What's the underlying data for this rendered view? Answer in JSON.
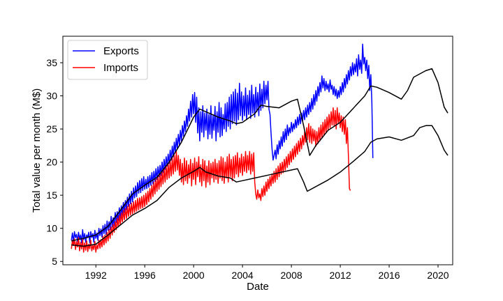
{
  "chart_data": {
    "type": "line",
    "xlabel": "Date",
    "ylabel": "Total value per month (M$)",
    "xlim": [
      1989.3,
      2021.2
    ],
    "ylim": [
      4.5,
      39.0
    ],
    "grid": false,
    "legend_position": "top-left",
    "x_ticks": [
      {
        "value": 1992,
        "label": "1992"
      },
      {
        "value": 1996,
        "label": "1996"
      },
      {
        "value": 2000,
        "label": "2000"
      },
      {
        "value": 2004,
        "label": "2004"
      },
      {
        "value": 2008,
        "label": "2008"
      },
      {
        "value": 2012,
        "label": "2012"
      },
      {
        "value": 2016,
        "label": "2016"
      },
      {
        "value": 2020,
        "label": "2020"
      }
    ],
    "y_ticks": [
      {
        "value": 5,
        "label": "5"
      },
      {
        "value": 10,
        "label": "10"
      },
      {
        "value": 15,
        "label": "15"
      },
      {
        "value": 20,
        "label": "20"
      },
      {
        "value": 25,
        "label": "25"
      },
      {
        "value": 30,
        "label": "30"
      },
      {
        "value": 35,
        "label": "35"
      }
    ],
    "series": [
      {
        "name": "Exports",
        "color": "#0000ff",
        "monthly": true,
        "start": 1990.0,
        "values": [
          8.2,
          9.3,
          7.9,
          9.5,
          8.6,
          9.1,
          8.0,
          9.4,
          8.4,
          9.0,
          7.8,
          9.8,
          8.3,
          9.2,
          7.9,
          9.0,
          8.6,
          9.4,
          7.8,
          9.5,
          8.6,
          9.2,
          7.9,
          9.7,
          8.5,
          9.3,
          8.2,
          10.0,
          8.9,
          9.9,
          8.7,
          10.4,
          9.2,
          10.6,
          9.1,
          11.1,
          9.7,
          11.0,
          9.8,
          11.8,
          10.2,
          11.6,
          10.4,
          12.4,
          10.9,
          12.5,
          11.2,
          13.1,
          11.5,
          13.4,
          12.0,
          13.9,
          12.4,
          14.2,
          12.8,
          14.7,
          13.3,
          15.2,
          13.7,
          15.6,
          14.0,
          16.1,
          14.6,
          16.4,
          14.8,
          16.9,
          15.3,
          17.2,
          15.4,
          17.5,
          15.7,
          17.8,
          15.9,
          17.4,
          16.0,
          17.8,
          16.2,
          18.0,
          16.5,
          18.4,
          16.7,
          18.6,
          17.1,
          19.0,
          17.4,
          19.3,
          17.8,
          19.5,
          18.0,
          20.0,
          18.4,
          20.4,
          18.9,
          20.8,
          19.4,
          21.2,
          19.8,
          21.8,
          20.3,
          22.4,
          20.8,
          23.0,
          21.5,
          23.6,
          22.0,
          24.2,
          22.6,
          24.8,
          23.2,
          25.5,
          23.9,
          26.2,
          24.6,
          27.0,
          25.4,
          28.0,
          26.2,
          29.2,
          26.8,
          30.2,
          27.3,
          30.5,
          26.0,
          29.8,
          24.4,
          28.2,
          23.2,
          27.6,
          24.5,
          28.5,
          23.8,
          27.4,
          24.8,
          28.0,
          23.5,
          27.2,
          24.2,
          28.5,
          23.6,
          27.0,
          24.8,
          28.4,
          23.2,
          27.6,
          24.5,
          29.0,
          23.8,
          28.2,
          24.0,
          27.2,
          25.0,
          28.8,
          24.6,
          29.0,
          25.4,
          29.8,
          25.0,
          30.2,
          25.8,
          30.6,
          26.2,
          31.0,
          25.6,
          30.4,
          26.4,
          31.9,
          27.0,
          30.6,
          26.3,
          30.0,
          27.0,
          31.2,
          26.4,
          30.1,
          27.2,
          30.8,
          26.6,
          31.6,
          27.4,
          30.2,
          26.8,
          31.3,
          27.6,
          30.5,
          27.0,
          31.8,
          27.8,
          31.0,
          28.2,
          32.2,
          28.8,
          31.6,
          29.4,
          32.2,
          28.0,
          27.2,
          24.5,
          22.0,
          20.3,
          21.0,
          21.8,
          20.5,
          22.6,
          21.2,
          23.2,
          22.0,
          23.8,
          22.4,
          24.6,
          23.0,
          25.0,
          23.4,
          25.6,
          24.0,
          25.2,
          24.4,
          26.0,
          24.6,
          25.8,
          25.0,
          26.4,
          25.2,
          26.8,
          25.6,
          27.2,
          25.8,
          27.4,
          26.2,
          27.8,
          26.4,
          28.2,
          26.8,
          28.6,
          27.2,
          29.0,
          27.6,
          29.6,
          28.0,
          30.2,
          28.6,
          30.8,
          29.2,
          31.4,
          30.0,
          32.0,
          30.6,
          33.0,
          31.2,
          32.6,
          30.8,
          32.2,
          31.0,
          31.8,
          30.6,
          32.4,
          31.0,
          31.6,
          30.2,
          31.4,
          30.0,
          31.0,
          29.6,
          30.8,
          29.8,
          31.4,
          30.2,
          32.0,
          30.6,
          32.6,
          31.2,
          33.2,
          31.8,
          33.8,
          32.4,
          34.4,
          33.0,
          35.0,
          33.2,
          34.8,
          33.6,
          35.6,
          33.0,
          36.2,
          34.0,
          35.4,
          33.4,
          37.8,
          34.8,
          35.8,
          33.8,
          35.4,
          32.6,
          34.6,
          30.8,
          33.2,
          29.0,
          20.6
        ]
      },
      {
        "name": "Imports",
        "color": "#ff0000",
        "monthly": true,
        "start": 1990.0,
        "values": [
          6.9,
          8.2,
          7.4,
          8.4,
          6.8,
          8.0,
          7.2,
          8.6,
          6.6,
          7.9,
          6.9,
          8.3,
          6.4,
          7.8,
          6.7,
          8.1,
          6.5,
          7.6,
          6.9,
          8.2,
          6.6,
          7.4,
          6.8,
          8.0,
          6.4,
          7.5,
          6.9,
          8.2,
          7.0,
          8.3,
          7.2,
          8.8,
          7.5,
          9.0,
          7.8,
          9.4,
          8.1,
          9.8,
          8.5,
          10.2,
          9.0,
          10.6,
          9.4,
          11.0,
          9.8,
          11.5,
          10.2,
          11.9,
          10.6,
          12.3,
          11.0,
          12.7,
          11.3,
          13.0,
          11.5,
          13.3,
          11.8,
          13.6,
          12.0,
          13.8,
          12.2,
          14.0,
          12.4,
          14.2,
          12.6,
          14.5,
          12.8,
          14.6,
          13.0,
          14.8,
          13.1,
          15.0,
          13.3,
          15.3,
          13.6,
          15.6,
          14.0,
          16.0,
          14.4,
          16.5,
          14.8,
          17.0,
          15.2,
          17.4,
          15.6,
          17.8,
          15.9,
          18.2,
          16.3,
          18.6,
          16.7,
          19.0,
          17.0,
          19.4,
          17.4,
          19.8,
          17.6,
          20.2,
          17.9,
          20.6,
          18.2,
          21.0,
          18.6,
          21.6,
          18.8,
          21.0,
          18.0,
          20.4,
          17.0,
          19.8,
          16.6,
          20.6,
          17.2,
          20.2,
          16.8,
          19.6,
          17.6,
          20.4,
          16.4,
          19.8,
          17.4,
          20.6,
          16.6,
          20.0,
          17.8,
          20.8,
          17.0,
          19.6,
          16.4,
          20.4,
          17.2,
          20.2,
          16.2,
          19.4,
          17.0,
          20.2,
          16.6,
          19.8,
          17.6,
          20.0,
          17.0,
          20.4,
          17.4,
          19.8,
          16.8,
          20.2,
          17.6,
          20.8,
          17.2,
          20.6,
          16.8,
          20.0,
          17.6,
          20.8,
          17.0,
          21.2,
          17.8,
          20.4,
          17.2,
          20.8,
          17.6,
          21.0,
          18.2,
          21.4,
          17.8,
          20.6,
          18.4,
          21.2,
          18.0,
          20.8,
          18.6,
          21.6,
          18.4,
          21.0,
          18.8,
          21.6,
          18.2,
          21.2,
          18.6,
          21.4,
          17.0,
          15.2,
          14.4,
          15.8,
          14.6,
          15.2,
          14.2,
          16.0,
          14.8,
          16.4,
          15.0,
          17.0,
          15.6,
          17.4,
          16.0,
          17.8,
          16.4,
          18.2,
          16.8,
          18.6,
          17.0,
          19.0,
          17.4,
          19.4,
          17.8,
          19.8,
          18.2,
          20.0,
          18.4,
          20.4,
          18.8,
          20.8,
          19.2,
          21.2,
          19.6,
          21.6,
          20.0,
          22.0,
          20.4,
          22.4,
          20.8,
          22.8,
          21.2,
          23.2,
          21.6,
          23.6,
          22.0,
          24.0,
          22.6,
          24.6,
          23.0,
          25.2,
          23.4,
          25.8,
          23.0,
          25.4,
          22.8,
          25.0,
          23.2,
          24.8,
          22.4,
          24.6,
          22.8,
          25.2,
          23.2,
          25.6,
          23.6,
          26.0,
          24.0,
          26.4,
          24.4,
          26.8,
          24.8,
          27.2,
          25.2,
          27.6,
          25.6,
          28.2,
          25.4,
          27.8,
          25.0,
          28.2,
          25.8,
          27.4,
          25.2,
          27.0,
          24.6,
          26.8,
          24.2,
          26.4,
          22.8,
          25.2,
          21.0,
          16.0,
          15.7
        ]
      },
      {
        "name": "",
        "color": "#000000",
        "monthly": false,
        "points": [
          [
            1990.0,
            8.1
          ],
          [
            1991.0,
            8.5
          ],
          [
            1992.0,
            9.0
          ],
          [
            1993.0,
            10.3
          ],
          [
            1994.0,
            12.7
          ],
          [
            1995.0,
            15.2
          ],
          [
            1996.0,
            16.5
          ],
          [
            1997.0,
            17.7
          ],
          [
            1998.0,
            20.0
          ],
          [
            1999.0,
            23.0
          ],
          [
            2000.0,
            26.8
          ],
          [
            2000.5,
            28.0
          ],
          [
            2001.0,
            27.6
          ],
          [
            2002.0,
            26.8
          ],
          [
            2003.0,
            26.2
          ],
          [
            2003.5,
            25.8
          ],
          [
            2004.0,
            26.0
          ],
          [
            2005.0,
            27.3
          ],
          [
            2005.5,
            28.6
          ],
          [
            2006.0,
            28.4
          ],
          [
            2007.0,
            28.2
          ],
          [
            2008.0,
            29.2
          ],
          [
            2008.5,
            29.5
          ],
          [
            2009.0,
            25.5
          ],
          [
            2009.5,
            21.0
          ],
          [
            2010.0,
            22.5
          ],
          [
            2011.0,
            24.8
          ],
          [
            2012.0,
            26.0
          ],
          [
            2013.0,
            28.0
          ],
          [
            2014.0,
            30.0
          ],
          [
            2014.5,
            31.5
          ],
          [
            2015.0,
            31.3
          ],
          [
            2016.0,
            30.5
          ],
          [
            2017.0,
            29.5
          ],
          [
            2017.5,
            30.8
          ],
          [
            2018.0,
            32.8
          ],
          [
            2019.0,
            33.8
          ],
          [
            2019.5,
            34.1
          ],
          [
            2020.0,
            32.0
          ],
          [
            2020.5,
            28.3
          ],
          [
            2020.8,
            27.4
          ]
        ]
      },
      {
        "name": "",
        "color": "#000000",
        "monthly": false,
        "points": [
          [
            1990.0,
            7.5
          ],
          [
            1991.0,
            7.3
          ],
          [
            1992.0,
            7.6
          ],
          [
            1993.0,
            9.0
          ],
          [
            1994.0,
            10.5
          ],
          [
            1995.0,
            12.0
          ],
          [
            1996.0,
            13.0
          ],
          [
            1997.0,
            14.2
          ],
          [
            1998.0,
            16.2
          ],
          [
            1999.0,
            17.6
          ],
          [
            2000.0,
            18.6
          ],
          [
            2000.5,
            19.2
          ],
          [
            2001.0,
            18.5
          ],
          [
            2002.0,
            17.9
          ],
          [
            2003.0,
            17.6
          ],
          [
            2003.5,
            17.0
          ],
          [
            2004.0,
            17.2
          ],
          [
            2005.0,
            17.6
          ],
          [
            2006.0,
            18.0
          ],
          [
            2007.0,
            18.4
          ],
          [
            2008.0,
            18.8
          ],
          [
            2008.5,
            19.0
          ],
          [
            2009.0,
            17.0
          ],
          [
            2009.3,
            15.6
          ],
          [
            2010.0,
            16.3
          ],
          [
            2011.0,
            17.3
          ],
          [
            2012.0,
            18.5
          ],
          [
            2013.0,
            20.0
          ],
          [
            2014.0,
            21.6
          ],
          [
            2014.5,
            23.0
          ],
          [
            2015.0,
            23.5
          ],
          [
            2016.0,
            23.8
          ],
          [
            2017.0,
            23.3
          ],
          [
            2018.0,
            24.0
          ],
          [
            2018.5,
            25.2
          ],
          [
            2019.0,
            25.5
          ],
          [
            2019.5,
            25.5
          ],
          [
            2020.0,
            24.0
          ],
          [
            2020.5,
            21.8
          ],
          [
            2020.8,
            21.0
          ]
        ]
      }
    ]
  }
}
